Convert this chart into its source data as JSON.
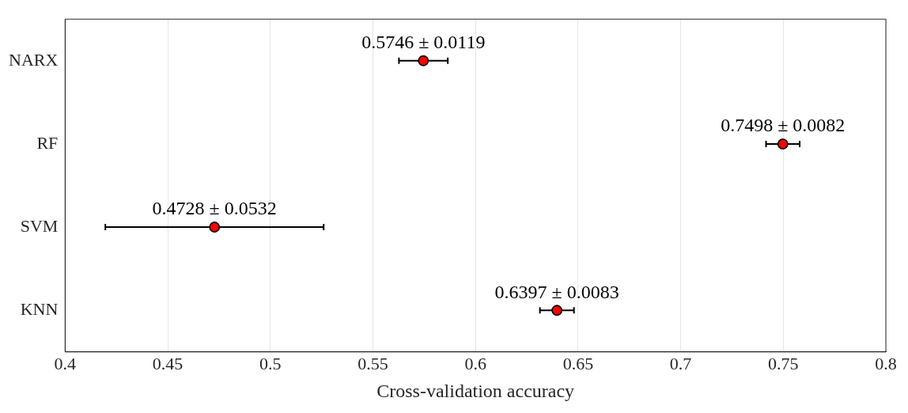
{
  "chart_data": {
    "type": "scatter",
    "orientation": "horizontal",
    "xlabel": "Cross-validation accuracy",
    "categories": [
      "NARX",
      "RF",
      "SVM",
      "KNN"
    ],
    "values": [
      0.5746,
      0.7498,
      0.4728,
      0.6397
    ],
    "errors": [
      0.0119,
      0.0082,
      0.0532,
      0.0083
    ],
    "value_labels": [
      "0.5746 ± 0.0119",
      "0.7498 ± 0.0082",
      "0.4728 ± 0.0532",
      "0.6397 ± 0.0083"
    ],
    "color": "#ff0000",
    "marker": "circle",
    "xlim": [
      0.4,
      0.8
    ],
    "xticks": [
      0.4,
      0.45,
      0.5,
      0.55,
      0.6,
      0.65,
      0.7,
      0.75,
      0.8
    ],
    "grid": "x",
    "legend": false
  }
}
